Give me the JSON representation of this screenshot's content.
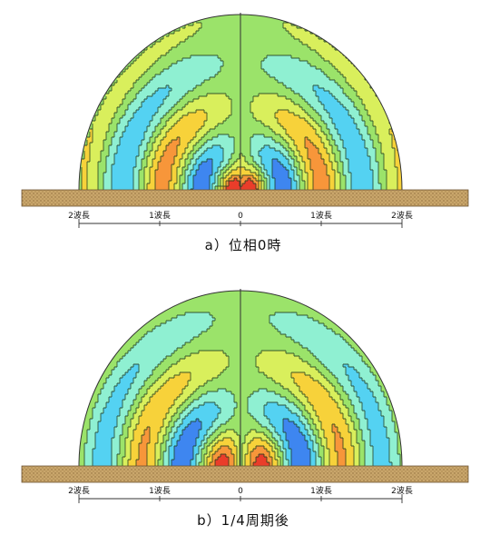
{
  "figures": [
    {
      "id": "a",
      "caption": "a）位相0時",
      "phase": 0,
      "ticks": [
        {
          "label": "2波長",
          "value": -2
        },
        {
          "label": "1波長",
          "value": -1
        },
        {
          "label": "0",
          "value": 0
        },
        {
          "label": "1波長",
          "value": 1
        },
        {
          "label": "2波長",
          "value": 2
        }
      ]
    },
    {
      "id": "b",
      "caption": "b）1/4周期後",
      "phase": 0.25,
      "ticks": [
        {
          "label": "2波長",
          "value": -2
        },
        {
          "label": "1波長",
          "value": -1
        },
        {
          "label": "0",
          "value": 0
        },
        {
          "label": "1波長",
          "value": 1
        },
        {
          "label": "2波長",
          "value": 2
        }
      ]
    }
  ],
  "colors": {
    "ground": "#c8a46a",
    "ground_dots": "#8a6a38",
    "outline": "#333333"
  }
}
